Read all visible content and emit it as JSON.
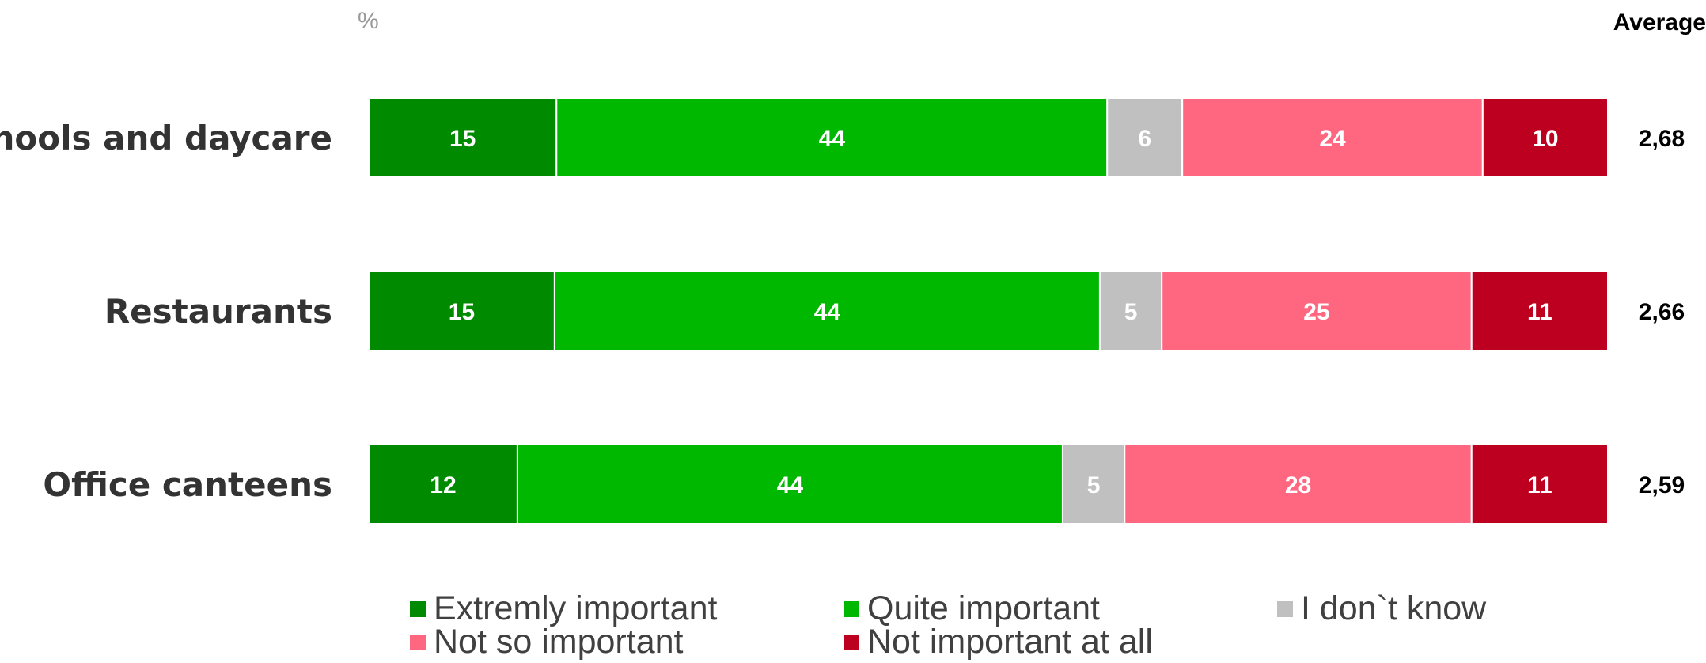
{
  "chart_data": {
    "type": "bar",
    "orientation": "horizontal",
    "stacked": true,
    "unit_label": "%",
    "average_header": "Average",
    "categories": [
      "Schools and daycare",
      "Restaurants",
      "Office canteens"
    ],
    "series": [
      {
        "name": "Extremly important",
        "color": "#008a00",
        "values": [
          15,
          15,
          12
        ]
      },
      {
        "name": "Quite important",
        "color": "#00b800",
        "values": [
          44,
          44,
          44
        ]
      },
      {
        "name": "I don`t know",
        "color": "#c0c0c0",
        "values": [
          6,
          5,
          5
        ]
      },
      {
        "name": "Not so important",
        "color": "#ff6680",
        "values": [
          24,
          25,
          28
        ]
      },
      {
        "name": "Not important at all",
        "color": "#be0020",
        "values": [
          10,
          11,
          11
        ]
      }
    ],
    "averages": [
      "2,68",
      "2,66",
      "2,59"
    ],
    "xlim": [
      0,
      100
    ],
    "grid": false,
    "legend_position": "bottom"
  }
}
